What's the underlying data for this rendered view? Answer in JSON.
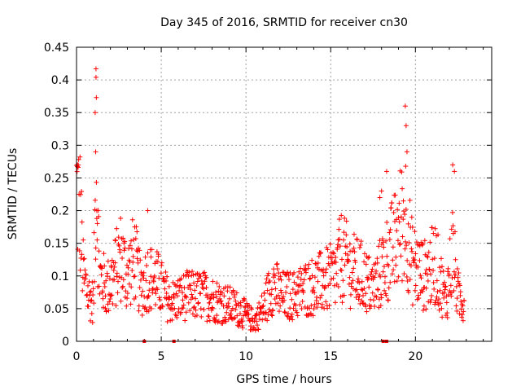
{
  "chart_data": {
    "type": "scatter",
    "title": "Day 345 of 2016, SRMTID for receiver cn30",
    "xlabel": "GPS time / hours",
    "ylabel": "SRMTID / TECUs",
    "xlim": [
      0,
      24.5
    ],
    "ylim": [
      0,
      0.45
    ],
    "xticks": [
      0,
      5,
      10,
      15,
      20
    ],
    "xtick_labels": [
      "0",
      "5",
      "10",
      "15",
      "20"
    ],
    "yticks": [
      0,
      0.05,
      0.1,
      0.15,
      0.2,
      0.25,
      0.3,
      0.35,
      0.4,
      0.45
    ],
    "ytick_labels": [
      "0",
      "0.05",
      "0.1",
      "0.15",
      "0.2",
      "0.25",
      "0.3",
      "0.35",
      "0.4",
      "0.45"
    ],
    "grid": true,
    "marker": "+",
    "marker_color": "#ff0000",
    "series": [
      {
        "name": "SRMTID",
        "envelope": [
          {
            "x": 0.0,
            "y": 0.23
          },
          {
            "x": 0.2,
            "y": 0.2
          },
          {
            "x": 0.4,
            "y": 0.1
          },
          {
            "x": 0.7,
            "y": 0.07
          },
          {
            "x": 1.0,
            "y": 0.06
          },
          {
            "x": 1.15,
            "y": 0.27
          },
          {
            "x": 1.35,
            "y": 0.1
          },
          {
            "x": 1.8,
            "y": 0.08
          },
          {
            "x": 2.2,
            "y": 0.1
          },
          {
            "x": 2.6,
            "y": 0.13
          },
          {
            "x": 3.0,
            "y": 0.1
          },
          {
            "x": 3.4,
            "y": 0.13
          },
          {
            "x": 3.8,
            "y": 0.08
          },
          {
            "x": 4.2,
            "y": 0.1
          },
          {
            "x": 4.8,
            "y": 0.09
          },
          {
            "x": 5.5,
            "y": 0.06
          },
          {
            "x": 6.5,
            "y": 0.07
          },
          {
            "x": 7.5,
            "y": 0.07
          },
          {
            "x": 8.5,
            "y": 0.06
          },
          {
            "x": 9.5,
            "y": 0.05
          },
          {
            "x": 10.5,
            "y": 0.03
          },
          {
            "x": 11.0,
            "y": 0.05
          },
          {
            "x": 11.6,
            "y": 0.09
          },
          {
            "x": 12.0,
            "y": 0.07
          },
          {
            "x": 12.8,
            "y": 0.07
          },
          {
            "x": 13.5,
            "y": 0.08
          },
          {
            "x": 14.5,
            "y": 0.09
          },
          {
            "x": 15.3,
            "y": 0.1
          },
          {
            "x": 15.6,
            "y": 0.13
          },
          {
            "x": 16.2,
            "y": 0.11
          },
          {
            "x": 16.8,
            "y": 0.1
          },
          {
            "x": 17.5,
            "y": 0.08
          },
          {
            "x": 18.2,
            "y": 0.12
          },
          {
            "x": 18.8,
            "y": 0.15
          },
          {
            "x": 19.4,
            "y": 0.2
          },
          {
            "x": 19.8,
            "y": 0.12
          },
          {
            "x": 20.5,
            "y": 0.1
          },
          {
            "x": 21.2,
            "y": 0.12
          },
          {
            "x": 21.8,
            "y": 0.06
          },
          {
            "x": 22.2,
            "y": 0.14
          },
          {
            "x": 22.5,
            "y": 0.07
          },
          {
            "x": 22.9,
            "y": 0.06
          }
        ],
        "spikes": [
          {
            "x": 0.05,
            "y": 0.27
          },
          {
            "x": 1.15,
            "y": 0.417
          },
          {
            "x": 1.15,
            "y": 0.404
          },
          {
            "x": 1.17,
            "y": 0.373
          },
          {
            "x": 1.1,
            "y": 0.35
          },
          {
            "x": 1.13,
            "y": 0.29
          },
          {
            "x": 1.2,
            "y": 0.2
          },
          {
            "x": 4.2,
            "y": 0.2
          },
          {
            "x": 19.4,
            "y": 0.36
          },
          {
            "x": 19.45,
            "y": 0.33
          },
          {
            "x": 19.5,
            "y": 0.29
          },
          {
            "x": 22.2,
            "y": 0.27
          },
          {
            "x": 22.3,
            "y": 0.26
          },
          {
            "x": 18.3,
            "y": 0.26
          },
          {
            "x": 17.9,
            "y": 0.22
          },
          {
            "x": 18.0,
            "y": 0.23
          }
        ]
      }
    ],
    "data_gaps_at_zero": [
      4.0,
      5.75,
      18.1,
      18.3
    ]
  }
}
